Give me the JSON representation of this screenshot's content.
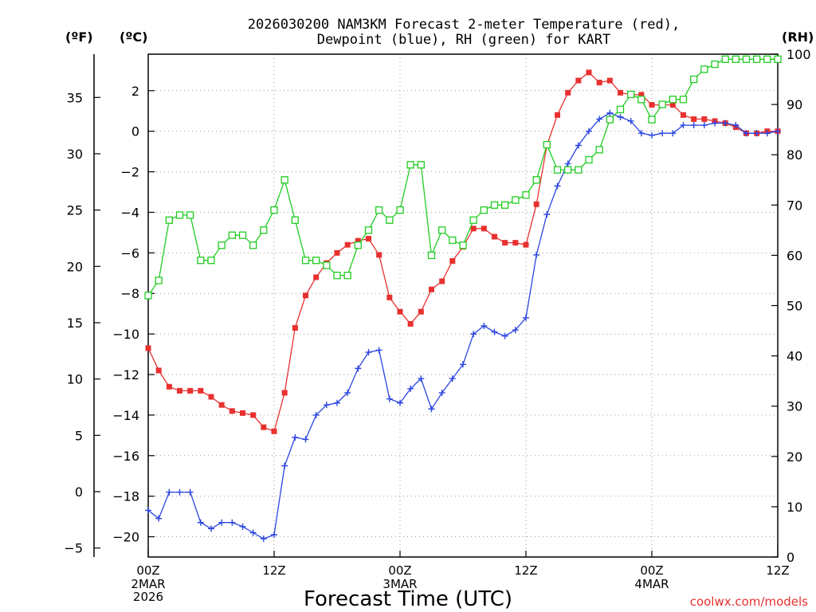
{
  "chart_data": {
    "type": "line",
    "title_line1": "2026030200 NAM3KM Forecast 2-meter Temperature (red),",
    "title_line2": "Dewpoint (blue), RH (green) for KART",
    "unit_f": "(ºF)",
    "unit_c": "(ºC)",
    "unit_rh": "(RH)",
    "xlabel": "Forecast Time (UTC)",
    "credit": "coolwx.com/models",
    "x_hours_range": [
      0,
      60
    ],
    "x_ticks": [
      {
        "hour": 0,
        "label": "00Z",
        "sub1": "2MAR",
        "sub2": "2026"
      },
      {
        "hour": 12,
        "label": "12Z",
        "sub1": "",
        "sub2": ""
      },
      {
        "hour": 24,
        "label": "00Z",
        "sub1": "3MAR",
        "sub2": ""
      },
      {
        "hour": 36,
        "label": "12Z",
        "sub1": "",
        "sub2": ""
      },
      {
        "hour": 48,
        "label": "00Z",
        "sub1": "4MAR",
        "sub2": ""
      },
      {
        "hour": 60,
        "label": "12Z",
        "sub1": "",
        "sub2": ""
      }
    ],
    "c_range": [
      -21,
      3.8
    ],
    "c_ticks": [
      2,
      0,
      -2,
      -4,
      -6,
      -8,
      -10,
      -12,
      -14,
      -16,
      -18,
      -20
    ],
    "c_tick_labels": [
      "2",
      "0",
      "−2",
      "−4",
      "−6",
      "−8",
      "−10",
      "−12",
      "−14",
      "−16",
      "−18",
      "−20"
    ],
    "f_ticks": [
      35,
      30,
      25,
      20,
      15,
      10,
      5,
      0,
      -5
    ],
    "f_tick_labels": [
      "35",
      "30",
      "25",
      "20",
      "15",
      "10",
      "5",
      "0",
      "−5"
    ],
    "rh_range": [
      0,
      100
    ],
    "rh_ticks": [
      100,
      90,
      80,
      70,
      60,
      50,
      40,
      30,
      20,
      10,
      0
    ],
    "rh_tick_labels": [
      "100",
      "90",
      "80",
      "70",
      "60",
      "50",
      "40",
      "30",
      "20",
      "10",
      "0"
    ],
    "series": [
      {
        "name": "Temperature",
        "unit": "C",
        "color": "#e8312f",
        "marker": "filled-square",
        "hours": [
          0,
          1,
          2,
          3,
          4,
          5,
          6,
          7,
          8,
          9,
          10,
          11,
          12,
          13,
          14,
          15,
          16,
          17,
          18,
          19,
          20,
          21,
          22,
          23,
          24,
          25,
          26,
          27,
          28,
          29,
          30,
          31,
          32,
          33,
          34,
          35,
          36,
          37,
          38,
          39,
          40,
          41,
          42,
          43,
          44,
          45,
          46,
          47,
          48,
          49,
          50,
          51,
          52,
          53,
          54,
          55,
          56,
          57,
          58,
          59,
          60
        ],
        "values": [
          -10.7,
          -11.8,
          -12.6,
          -12.8,
          -12.8,
          -12.8,
          -13.1,
          -13.5,
          -13.8,
          -13.9,
          -14.0,
          -14.6,
          -14.8,
          -12.9,
          -9.7,
          -8.1,
          -7.2,
          -6.5,
          -6.0,
          -5.6,
          -5.4,
          -5.3,
          -6.1,
          -8.2,
          -8.9,
          -9.5,
          -8.9,
          -7.8,
          -7.4,
          -6.4,
          -5.7,
          -4.8,
          -4.8,
          -5.2,
          -5.5,
          -5.5,
          -5.6,
          -3.6,
          -0.7,
          0.8,
          1.9,
          2.5,
          2.9,
          2.4,
          2.5,
          1.9,
          1.8,
          1.8,
          1.3,
          1.3,
          1.3,
          0.8,
          0.6,
          0.6,
          0.5,
          0.4,
          0.2,
          -0.1,
          -0.1,
          0.0,
          0.0
        ]
      },
      {
        "name": "Dewpoint",
        "unit": "C",
        "color": "#2b45e0",
        "marker": "plus",
        "hours": [
          0,
          1,
          2,
          3,
          4,
          5,
          6,
          7,
          8,
          9,
          10,
          11,
          12,
          13,
          14,
          15,
          16,
          17,
          18,
          19,
          20,
          21,
          22,
          23,
          24,
          25,
          26,
          27,
          28,
          29,
          30,
          31,
          32,
          33,
          34,
          35,
          36,
          37,
          38,
          39,
          40,
          41,
          42,
          43,
          44,
          45,
          46,
          47,
          48,
          49,
          50,
          51,
          52,
          53,
          54,
          55,
          56,
          57,
          58,
          59,
          60
        ],
        "values": [
          -18.7,
          -19.1,
          -17.8,
          -17.8,
          -17.8,
          -19.3,
          -19.6,
          -19.3,
          -19.3,
          -19.5,
          -19.8,
          -20.1,
          -19.9,
          -16.5,
          -15.1,
          -15.2,
          -14.0,
          -13.5,
          -13.4,
          -12.9,
          -11.7,
          -10.9,
          -10.8,
          -13.2,
          -13.4,
          -12.7,
          -12.2,
          -13.7,
          -12.9,
          -12.2,
          -11.5,
          -10.0,
          -9.6,
          -9.9,
          -10.1,
          -9.8,
          -9.2,
          -6.1,
          -4.1,
          -2.7,
          -1.6,
          -0.7,
          0.0,
          0.6,
          0.9,
          0.7,
          0.5,
          -0.1,
          -0.2,
          -0.1,
          -0.1,
          0.3,
          0.3,
          0.3,
          0.4,
          0.4,
          0.3,
          -0.1,
          -0.1,
          -0.1,
          0.0
        ]
      },
      {
        "name": "Relative Humidity",
        "unit": "%",
        "color": "#22cc22",
        "marker": "open-square",
        "hours": [
          0,
          1,
          2,
          3,
          4,
          5,
          6,
          7,
          8,
          9,
          10,
          11,
          12,
          13,
          14,
          15,
          16,
          17,
          18,
          19,
          20,
          21,
          22,
          23,
          24,
          25,
          26,
          27,
          28,
          29,
          30,
          31,
          32,
          33,
          34,
          35,
          36,
          37,
          38,
          39,
          40,
          41,
          42,
          43,
          44,
          45,
          46,
          47,
          48,
          49,
          50,
          51,
          52,
          53,
          54,
          55,
          56,
          57,
          58,
          59,
          60
        ],
        "values": [
          52,
          55,
          67,
          68,
          68,
          59,
          59,
          62,
          64,
          64,
          62,
          65,
          69,
          75,
          67,
          59,
          59,
          58,
          56,
          56,
          62,
          65,
          69,
          67,
          69,
          78,
          78,
          60,
          65,
          63,
          62,
          67,
          69,
          70,
          70,
          71,
          72,
          75,
          82,
          77,
          77,
          77,
          79,
          81,
          87,
          89,
          92,
          91,
          87,
          90,
          91,
          91,
          95,
          97,
          98,
          99,
          99,
          99,
          99,
          99,
          99
        ]
      }
    ]
  }
}
